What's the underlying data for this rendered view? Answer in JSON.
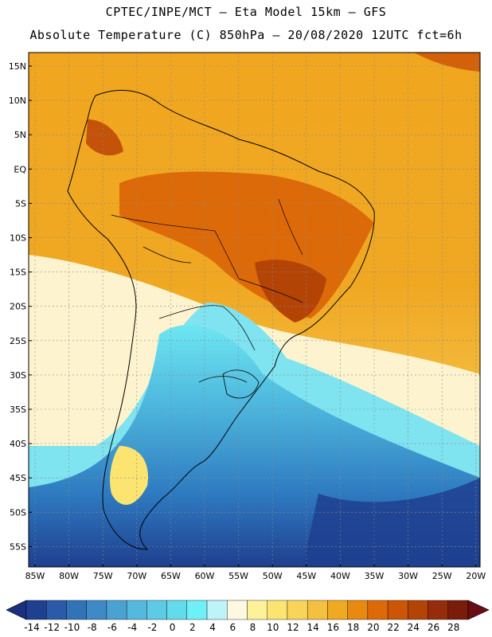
{
  "header": {
    "line1": "CPTEC/INPE/MCT –  Eta Model 15km – GFS",
    "line2": "Absolute Temperature (C) 850hPa – 20/08/2020 12UTC fct=6h"
  },
  "axes": {
    "lat_labels": [
      "15N",
      "10N",
      "5N",
      "EQ",
      "5S",
      "10S",
      "15S",
      "20S",
      "25S",
      "30S",
      "35S",
      "40S",
      "45S",
      "50S",
      "55S"
    ],
    "lon_labels": [
      "85W",
      "80W",
      "75W",
      "70W",
      "65W",
      "60W",
      "55W",
      "50W",
      "45W",
      "40W",
      "35W",
      "30W",
      "25W",
      "20W"
    ]
  },
  "colorbar": {
    "labels": [
      "-14",
      "-12",
      "-10",
      "-8",
      "-6",
      "-4",
      "-2",
      "0",
      "2",
      "4",
      "6",
      "8",
      "10",
      "12",
      "14",
      "16",
      "18",
      "20",
      "22",
      "24",
      "26",
      "28"
    ],
    "colors": [
      "#1f3f8f",
      "#2a5aa8",
      "#3272b8",
      "#3e8ac6",
      "#4aa2d2",
      "#55b8de",
      "#5dcbe6",
      "#62dcec",
      "#6ef0f6",
      "#bff3fa",
      "#fdf8e2",
      "#fdf29a",
      "#fbe470",
      "#f9d458",
      "#f5c040",
      "#f0aa22",
      "#e88a10",
      "#dd6a08",
      "#cc5506",
      "#b44406",
      "#962c0a",
      "#7a1c0c"
    ],
    "under_color": "#1a2f80",
    "over_color": "#6a0c14"
  }
}
